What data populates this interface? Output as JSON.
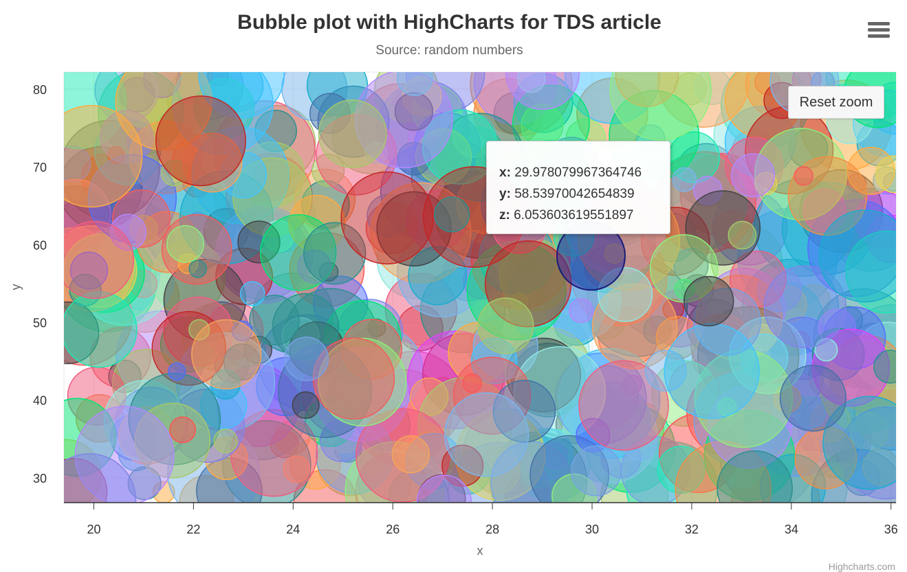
{
  "chart_data": {
    "type": "bubble",
    "title": "Bubble plot with HighCharts for TDS article",
    "subtitle": "Source: random numbers",
    "xlabel": "x",
    "ylabel": "y",
    "xlim": [
      19.4,
      36.1
    ],
    "ylim": [
      26.8,
      82.2
    ],
    "x_ticks": [
      "20",
      "22",
      "24",
      "26",
      "28",
      "30",
      "32",
      "34",
      "36"
    ],
    "y_ticks": [
      "30",
      "40",
      "50",
      "60",
      "70",
      "80"
    ],
    "grid": true,
    "legend": "none",
    "point_count": 520,
    "z_range": [
      0,
      10
    ],
    "palette": [
      "#7cb5ec",
      "#f15c80",
      "#e4d354",
      "#2b908f",
      "#f45b5b",
      "#91e8e1",
      "#8085e9",
      "#f7a35c",
      "#90ed7d",
      "#434348",
      "#1aadce",
      "#4572A7",
      "#f28f43",
      "#77a1e5",
      "#c42525",
      "#a6c96a",
      "#00e676",
      "#b388ff",
      "#40c4ff",
      "#ff5252",
      "#1de9b6",
      "#ffab40",
      "#536dfe",
      "#e040fb"
    ],
    "series_points": [
      {
        "x": 29.978079967364746,
        "y": 58.53970042654839,
        "z": 6.053603619551897
      }
    ]
  },
  "tooltip": {
    "x_label": "x:",
    "x_value": "29.978079967364746",
    "y_label": "y:",
    "y_value": "58.53970042654839",
    "z_label": "z:",
    "z_value": "6.053603619551897"
  },
  "toolbar": {
    "reset_zoom_label": "Reset zoom",
    "menu_icon": "hamburger-menu-icon"
  },
  "credits": "Highcharts.com"
}
